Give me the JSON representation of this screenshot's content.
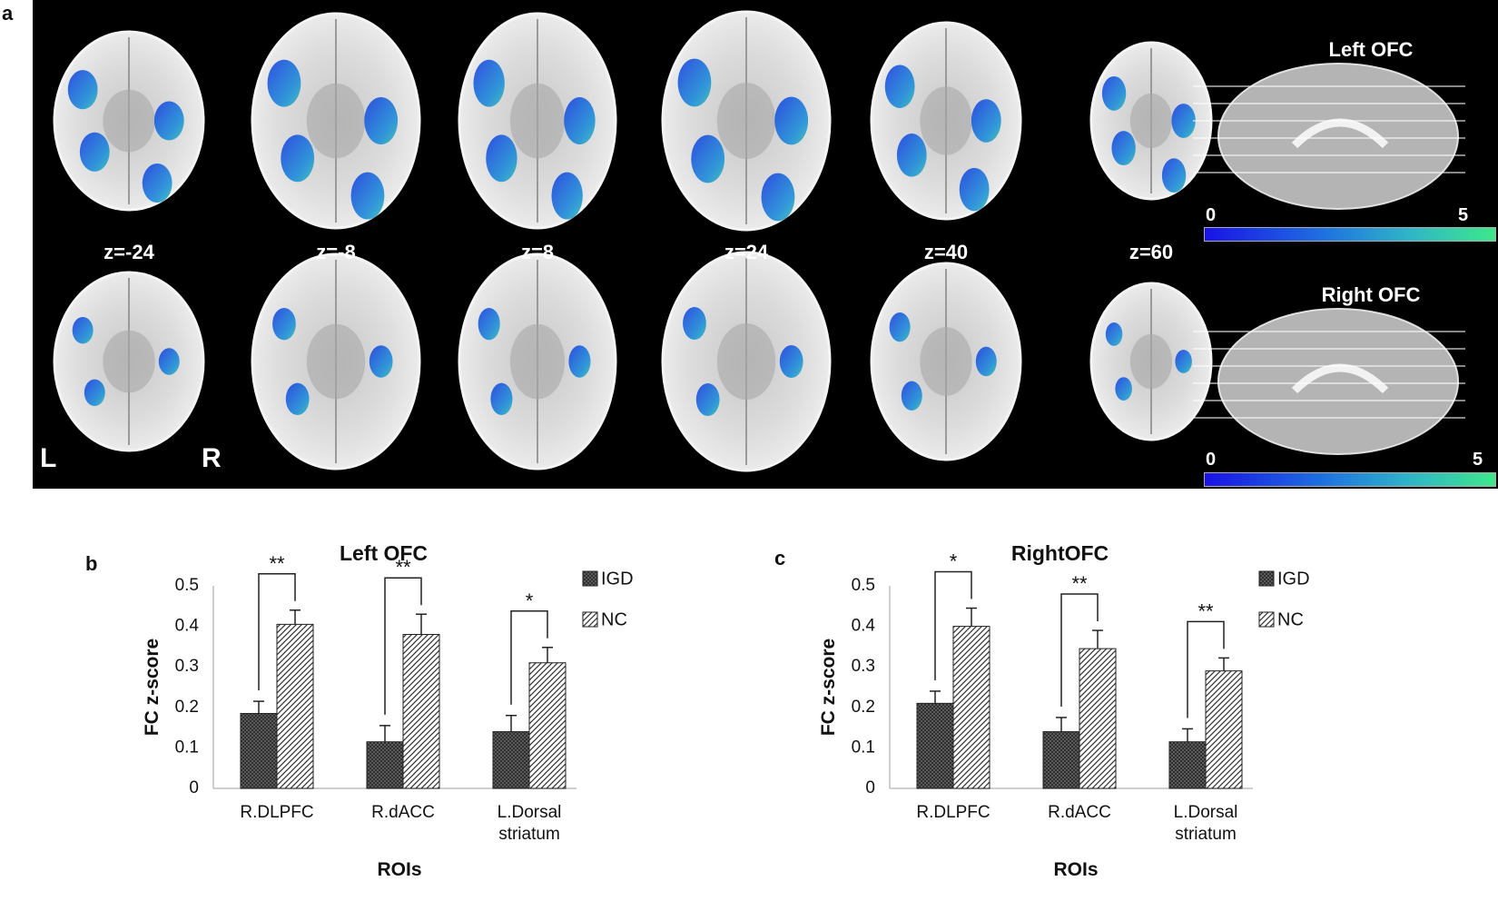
{
  "panels": {
    "a": "a",
    "b": "b",
    "c": "c"
  },
  "brain": {
    "slices": [
      "z=-24",
      "z=-8",
      "z=8",
      "z=24",
      "z=40",
      "z=60"
    ],
    "orientation_left": "L",
    "orientation_right": "R",
    "rows": [
      {
        "title": "Left OFC",
        "cbar_min": "0",
        "cbar_max": "5"
      },
      {
        "title": "Right OFC",
        "cbar_min": "0",
        "cbar_max": "5"
      }
    ],
    "colors": {
      "background": "#000000",
      "overlay_low": "#1a12e6",
      "overlay_high": "#3ee88a"
    }
  },
  "chart_data": [
    {
      "type": "bar",
      "title": "Left OFC",
      "xlabel": "ROIs",
      "ylabel": "FC z-score",
      "ylim": [
        0,
        0.5
      ],
      "yticks": [
        "0",
        "0.1",
        "0.2",
        "0.3",
        "0.4",
        "0.5"
      ],
      "categories": [
        [
          "R.DLPFC"
        ],
        [
          "R.dACC"
        ],
        [
          "L.Dorsal",
          "striatum"
        ]
      ],
      "series": [
        {
          "name": "IGD",
          "values": [
            0.185,
            0.115,
            0.14
          ],
          "errors": [
            0.03,
            0.04,
            0.04
          ]
        },
        {
          "name": "NC",
          "values": [
            0.405,
            0.38,
            0.31
          ],
          "errors": [
            0.035,
            0.05,
            0.038
          ]
        }
      ],
      "significance": [
        "**",
        "**",
        "*"
      ],
      "legend": "right"
    },
    {
      "type": "bar",
      "title": "RightOFC",
      "xlabel": "ROIs",
      "ylabel": "FC z-score",
      "ylim": [
        0,
        0.5
      ],
      "yticks": [
        "0",
        "0.1",
        "0.2",
        "0.3",
        "0.4",
        "0.5"
      ],
      "categories": [
        [
          "R.DLPFC"
        ],
        [
          "R.dACC"
        ],
        [
          "L.Dorsal",
          "striatum"
        ]
      ],
      "series": [
        {
          "name": "IGD",
          "values": [
            0.21,
            0.14,
            0.115
          ],
          "errors": [
            0.03,
            0.035,
            0.032
          ]
        },
        {
          "name": "NC",
          "values": [
            0.4,
            0.345,
            0.29
          ],
          "errors": [
            0.045,
            0.045,
            0.032
          ]
        }
      ],
      "significance": [
        "*",
        "**",
        "**"
      ],
      "legend": "right"
    }
  ]
}
